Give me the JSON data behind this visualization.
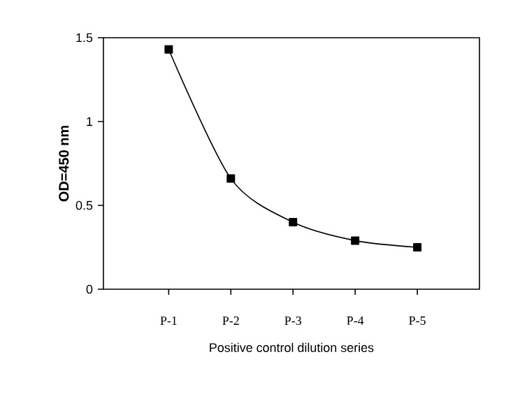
{
  "chart_data": {
    "type": "line",
    "xlabel": "Positive control dilution series",
    "ylabel": "OD=450 nm",
    "categories": [
      "P-1",
      "P-2",
      "P-3",
      "P-4",
      "P-5"
    ],
    "series": [
      {
        "color": "#000000",
        "values": [
          1.43,
          0.66,
          0.4,
          0.29,
          0.25
        ]
      }
    ],
    "ylim": [
      0,
      1.5
    ],
    "yticks": [
      0,
      0.5,
      1,
      1.5
    ],
    "marker": "square",
    "line_style": "solid"
  }
}
